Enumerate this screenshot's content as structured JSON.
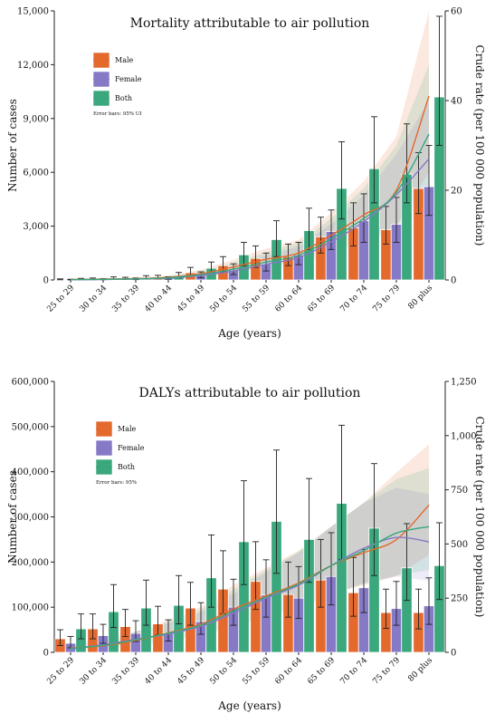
{
  "chart_data": [
    {
      "type": "bar",
      "title": "Mortality attributable to air pollution",
      "xlabel": "Age (years)",
      "ylabel": "Number of cases",
      "y2label": "Crude rate (per 100 000 population)",
      "categories": [
        "25 to 29",
        "30 to 34",
        "35 to 39",
        "40 to 44",
        "45 to 49",
        "50 to 54",
        "55 to 59",
        "60 to 64",
        "65 to 69",
        "70 to 74",
        "75 to 79",
        "80 plus"
      ],
      "ylim": [
        0,
        15000
      ],
      "yticks": [
        0,
        3000,
        6000,
        9000,
        12000,
        15000
      ],
      "ytick_labels": [
        "0",
        "3,000",
        "6,000",
        "9,000",
        "12,000",
        "15,000"
      ],
      "y2lim": [
        0,
        60
      ],
      "y2ticks": [
        0,
        20,
        40,
        60
      ],
      "y2tick_labels": [
        "0",
        "20",
        "40",
        "60"
      ],
      "legend": {
        "position": "top-left",
        "note": "Error bars: 95% UI"
      },
      "series": [
        {
          "name": "Male",
          "color": "#e4692d",
          "values": [
            30,
            60,
            80,
            150,
            400,
            800,
            1200,
            1300,
            2400,
            2900,
            2800,
            5100
          ],
          "err_low": [
            10,
            20,
            30,
            60,
            200,
            450,
            700,
            800,
            1500,
            1900,
            2000,
            3700
          ],
          "err_high": [
            60,
            110,
            150,
            260,
            700,
            1300,
            1900,
            2000,
            3500,
            4300,
            4100,
            7100
          ],
          "rate": [
            0.1,
            0.2,
            0.3,
            0.6,
            1.4,
            2.9,
            4.6,
            6.0,
            10.0,
            14.5,
            20.0,
            41.0
          ],
          "rate_low": [
            0.05,
            0.1,
            0.15,
            0.3,
            0.8,
            1.8,
            3.0,
            4.0,
            6.5,
            9.0,
            12.0,
            24.0
          ],
          "rate_high": [
            0.2,
            0.4,
            0.6,
            1.0,
            2.3,
            4.5,
            7.0,
            9.0,
            15.0,
            22.0,
            32.0,
            60.0
          ]
        },
        {
          "name": "Female",
          "color": "#8679c6",
          "values": [
            20,
            40,
            60,
            100,
            250,
            550,
            900,
            1400,
            2700,
            3300,
            3100,
            5200
          ],
          "err_low": [
            5,
            15,
            20,
            40,
            120,
            300,
            500,
            850,
            1700,
            2100,
            2100,
            3600
          ],
          "err_high": [
            40,
            80,
            110,
            180,
            450,
            900,
            1500,
            2100,
            3900,
            4800,
            4600,
            7500
          ],
          "rate": [
            0.05,
            0.1,
            0.2,
            0.4,
            1.0,
            2.0,
            3.5,
            5.0,
            8.5,
            13.0,
            19.0,
            27.0
          ],
          "rate_low": [
            0.02,
            0.05,
            0.1,
            0.2,
            0.5,
            1.2,
            2.0,
            3.0,
            5.5,
            8.0,
            11.5,
            16.0
          ],
          "rate_high": [
            0.1,
            0.2,
            0.35,
            0.7,
            1.6,
            3.2,
            5.5,
            7.5,
            12.5,
            19.0,
            28.0,
            40.0
          ]
        },
        {
          "name": "Both",
          "color": "#3aa77c",
          "values": [
            50,
            100,
            140,
            250,
            650,
            1400,
            2250,
            2750,
            5100,
            6200,
            5900,
            10200
          ],
          "err_low": [
            20,
            40,
            70,
            120,
            350,
            800,
            1300,
            1700,
            3400,
            4300,
            4300,
            7500
          ],
          "err_high": [
            90,
            170,
            240,
            420,
            1000,
            2100,
            3300,
            4000,
            7700,
            9100,
            8700,
            14700
          ],
          "rate": [
            0.08,
            0.15,
            0.25,
            0.5,
            1.2,
            2.4,
            4.0,
            5.5,
            9.2,
            13.7,
            19.5,
            32.5
          ],
          "rate_low": [
            0.04,
            0.08,
            0.12,
            0.25,
            0.7,
            1.5,
            2.6,
            3.6,
            6.0,
            8.7,
            12.0,
            20.0
          ],
          "rate_high": [
            0.15,
            0.3,
            0.45,
            0.85,
            2.0,
            3.8,
            6.2,
            8.3,
            13.7,
            20.5,
            30.0,
            48.0
          ]
        }
      ]
    },
    {
      "type": "bar",
      "title": "DALYs attributable to air pollution",
      "xlabel": "Age (years)",
      "ylabel": "Number of cases",
      "y2label": "Crude rate (per 100 000 population)",
      "categories": [
        "25 to 29",
        "30 to 34",
        "35 to 39",
        "40 to 44",
        "45 to 49",
        "50 to 54",
        "55 to 59",
        "60 to 64",
        "65 to 69",
        "70 to 74",
        "75 to 79",
        "80 plus"
      ],
      "ylim": [
        0,
        600000
      ],
      "yticks": [
        0,
        100000,
        200000,
        300000,
        400000,
        500000,
        600000
      ],
      "ytick_labels": [
        "0",
        "100,000",
        "200,000",
        "300,000",
        "400,000",
        "500,000",
        "600,000"
      ],
      "y2lim": [
        0,
        1250
      ],
      "y2ticks": [
        0,
        250,
        500,
        750,
        1000,
        1250
      ],
      "y2tick_labels": [
        "0",
        "250",
        "500",
        "750",
        "1,000",
        "1,250"
      ],
      "legend": {
        "position": "top-left",
        "note": "Error bars: 95%"
      },
      "series": [
        {
          "name": "Male",
          "color": "#e4692d",
          "values": [
            30000,
            52000,
            57000,
            63000,
            98000,
            140000,
            157000,
            128000,
            160000,
            132000,
            88000,
            88000
          ],
          "err_low": [
            15000,
            30000,
            35000,
            38000,
            60000,
            85000,
            95000,
            78000,
            100000,
            80000,
            53000,
            52000
          ],
          "err_high": [
            50000,
            85000,
            95000,
            102000,
            155000,
            225000,
            245000,
            200000,
            250000,
            210000,
            140000,
            140000
          ],
          "rate": [
            20,
            30,
            55,
            90,
            130,
            200,
            260,
            320,
            400,
            460,
            520,
            680
          ],
          "rate_low": [
            10,
            15,
            30,
            55,
            80,
            130,
            170,
            210,
            270,
            310,
            350,
            450
          ],
          "rate_high": [
            40,
            60,
            95,
            150,
            210,
            310,
            390,
            470,
            580,
            690,
            830,
            960
          ]
        },
        {
          "name": "Female",
          "color": "#8679c6",
          "values": [
            20000,
            37000,
            42000,
            43000,
            68000,
            100000,
            127000,
            120000,
            168000,
            143000,
            97000,
            103000
          ],
          "err_low": [
            10000,
            20000,
            24000,
            25000,
            40000,
            60000,
            78000,
            75000,
            105000,
            88000,
            60000,
            62000
          ],
          "err_high": [
            35000,
            62000,
            70000,
            72000,
            110000,
            162000,
            205000,
            190000,
            265000,
            228000,
            157000,
            165000
          ],
          "rate": [
            15,
            35,
            60,
            85,
            120,
            180,
            250,
            310,
            400,
            480,
            530,
            510
          ],
          "rate_low": [
            8,
            18,
            35,
            50,
            75,
            115,
            160,
            200,
            265,
            320,
            350,
            330
          ],
          "rate_high": [
            30,
            60,
            95,
            135,
            185,
            270,
            370,
            460,
            580,
            690,
            760,
            730
          ]
        },
        {
          "name": "Both",
          "color": "#3aa77c",
          "values": [
            52000,
            90000,
            98000,
            104000,
            165000,
            245000,
            290000,
            250000,
            330000,
            275000,
            187000,
            192000
          ],
          "err_low": [
            30000,
            55000,
            60000,
            63000,
            100000,
            150000,
            175000,
            155000,
            205000,
            170000,
            115000,
            117000
          ],
          "err_high": [
            85000,
            150000,
            160000,
            170000,
            260000,
            380000,
            448000,
            385000,
            503000,
            418000,
            285000,
            287000
          ],
          "rate": [
            18,
            32,
            58,
            88,
            125,
            190,
            255,
            315,
            400,
            470,
            550,
            580
          ],
          "rate_low": [
            9,
            16,
            32,
            52,
            78,
            122,
            165,
            205,
            268,
            315,
            355,
            380
          ],
          "rate_high": [
            35,
            60,
            95,
            142,
            198,
            290,
            380,
            465,
            580,
            690,
            800,
            850
          ]
        }
      ]
    }
  ]
}
